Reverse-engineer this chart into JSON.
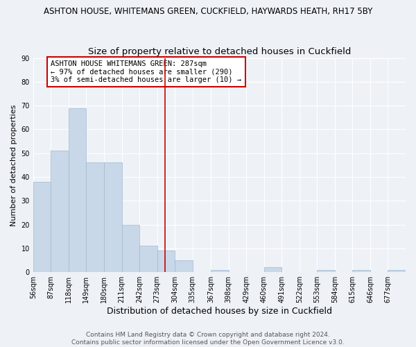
{
  "title": "ASHTON HOUSE, WHITEMANS GREEN, CUCKFIELD, HAYWARDS HEATH, RH17 5BY",
  "subtitle": "Size of property relative to detached houses in Cuckfield",
  "xlabel": "Distribution of detached houses by size in Cuckfield",
  "ylabel": "Number of detached properties",
  "bin_edges": [
    56,
    87,
    118,
    149,
    180,
    211,
    242,
    273,
    304,
    335,
    367,
    398,
    429,
    460,
    491,
    522,
    553,
    584,
    615,
    646,
    677,
    708
  ],
  "bar_heights": [
    38,
    51,
    69,
    46,
    46,
    20,
    11,
    9,
    5,
    0,
    1,
    0,
    0,
    2,
    0,
    0,
    1,
    0,
    1,
    0,
    1
  ],
  "bar_color": "#c8d8e8",
  "bar_edgecolor": "#a0b8d0",
  "vline_x": 287,
  "vline_color": "#cc0000",
  "ylim": [
    0,
    90
  ],
  "yticks": [
    0,
    10,
    20,
    30,
    40,
    50,
    60,
    70,
    80,
    90
  ],
  "annotation_text": "ASHTON HOUSE WHITEMANS GREEN: 287sqm\n← 97% of detached houses are smaller (290)\n3% of semi-detached houses are larger (10) →",
  "annotation_box_color": "#ffffff",
  "annotation_box_edgecolor": "#cc0000",
  "footer_text": "Contains HM Land Registry data © Crown copyright and database right 2024.\nContains public sector information licensed under the Open Government Licence v3.0.",
  "background_color": "#eef2f7",
  "grid_color": "#ffffff",
  "title_fontsize": 8.5,
  "subtitle_fontsize": 9.5,
  "xlabel_fontsize": 9,
  "ylabel_fontsize": 8,
  "tick_fontsize": 7,
  "annotation_fontsize": 7.5,
  "footer_fontsize": 6.5
}
